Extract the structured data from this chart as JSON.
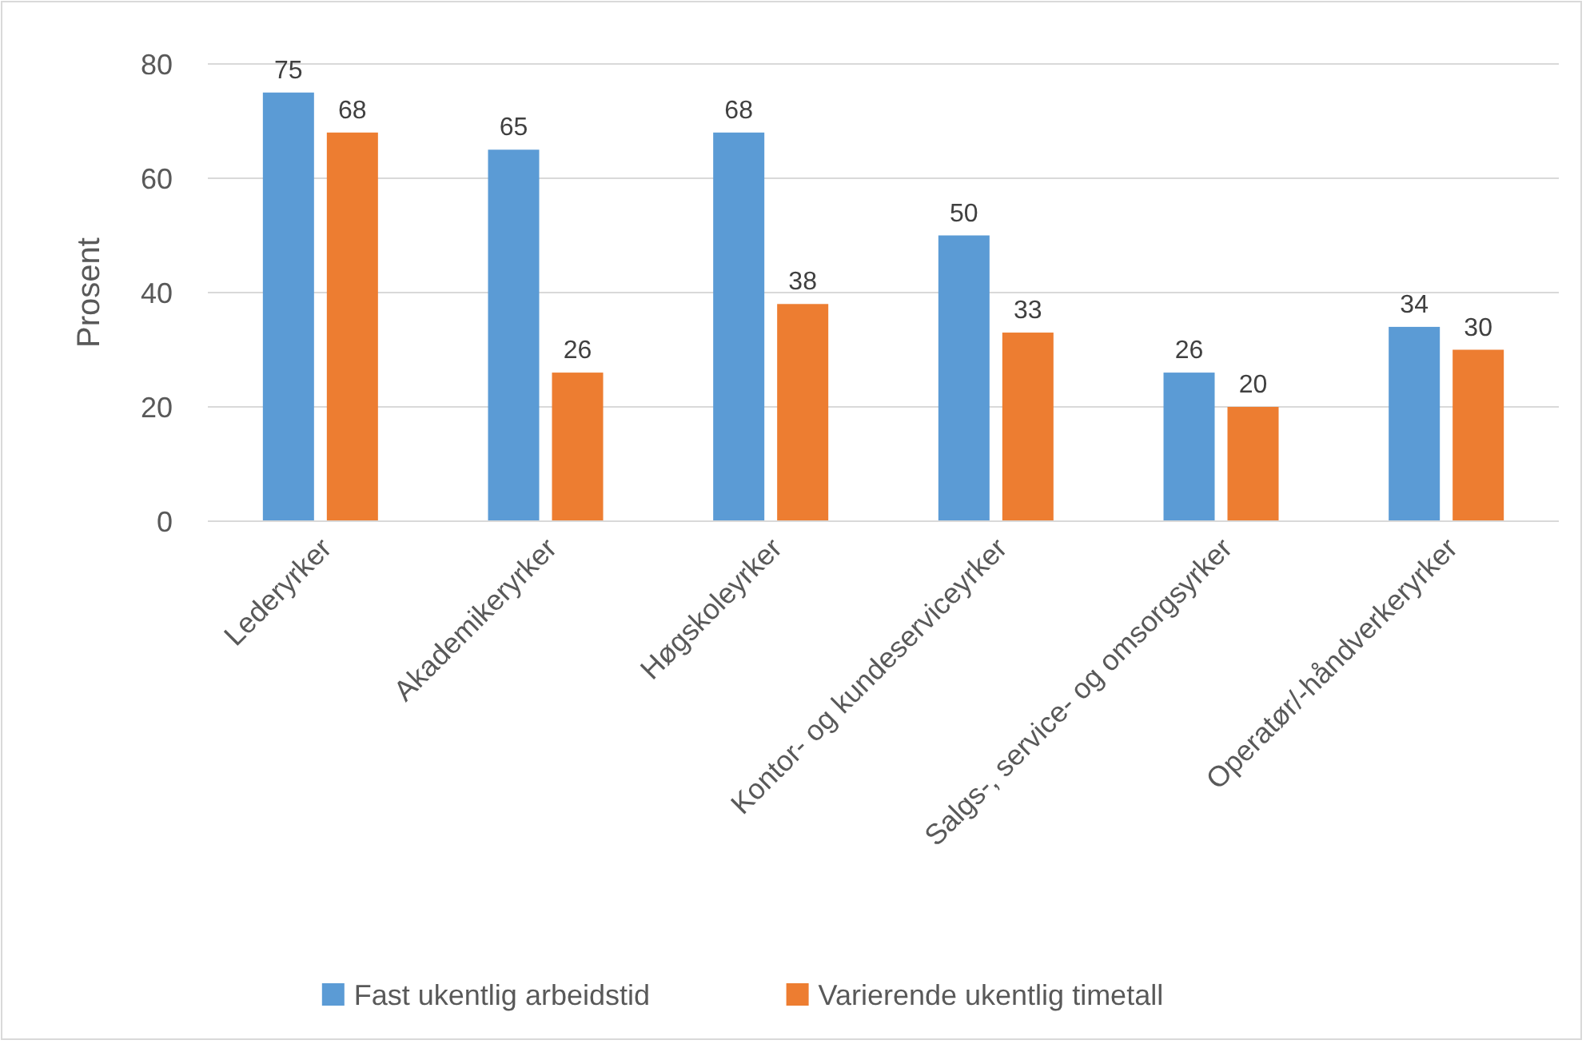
{
  "chart_data": {
    "type": "bar",
    "ylabel": "Prosent",
    "categories": [
      "Lederyrker",
      "Akademikeryrker",
      "Høgskoleyrker",
      "Kontor- og kundeserviceyrker",
      "Salgs-, service- og omsorgsyrker",
      "Operatør/-håndverkeryrker"
    ],
    "series": [
      {
        "name": "Fast ukentlig arbeidstid",
        "color": "#5b9bd5",
        "values": [
          75,
          65,
          68,
          50,
          26,
          34
        ]
      },
      {
        "name": "Varierende ukentlig timetall",
        "color": "#ed7d31",
        "values": [
          68,
          26,
          38,
          33,
          20,
          30
        ]
      }
    ],
    "ylim": [
      0,
      80
    ],
    "yticks": [
      0,
      20,
      40,
      60,
      80
    ],
    "grid": "y",
    "legend": "bottom",
    "data_labels": true
  }
}
